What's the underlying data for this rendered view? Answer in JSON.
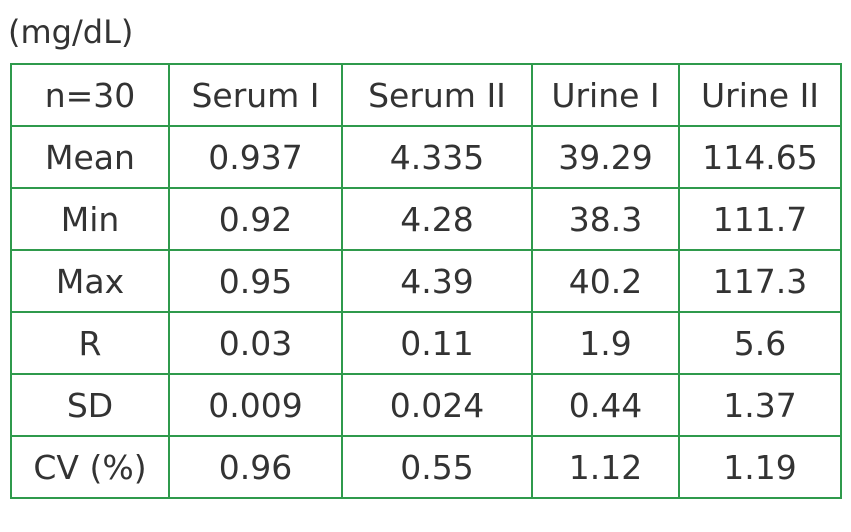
{
  "table": {
    "unit": "(mg/dL)",
    "header": [
      "n=30",
      "Serum I",
      "Serum II",
      "Urine I",
      "Urine II"
    ],
    "rows": [
      [
        "Mean",
        "0.937",
        "4.335",
        "39.29",
        "114.65"
      ],
      [
        "Min",
        "0.92",
        "4.28",
        "38.3",
        "111.7"
      ],
      [
        "Max",
        "0.95",
        "4.39",
        "40.2",
        "117.3"
      ],
      [
        "R",
        "0.03",
        "0.11",
        "1.9",
        "5.6"
      ],
      [
        "SD",
        "0.009",
        "0.024",
        "0.44",
        "1.37"
      ],
      [
        "CV (%)",
        "0.96",
        "0.55",
        "1.12",
        "1.19"
      ]
    ]
  }
}
